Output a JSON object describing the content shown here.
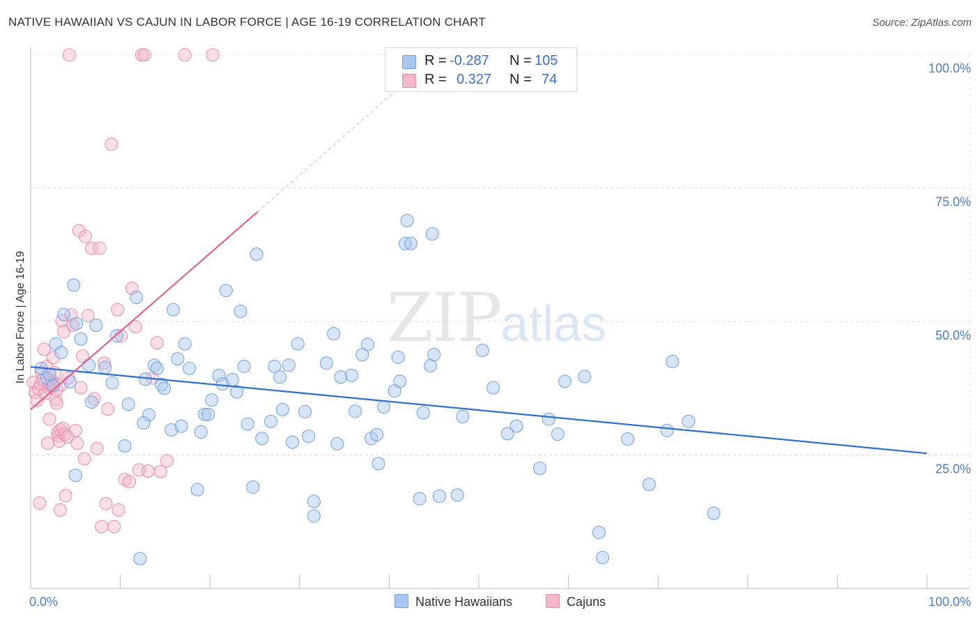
{
  "header": {
    "title": "NATIVE HAWAIIAN VS CAJUN IN LABOR FORCE | AGE 16-19 CORRELATION CHART",
    "source": "Source: ZipAtlas.com"
  },
  "watermark": {
    "zip": "ZIP",
    "atlas": "atlas"
  },
  "legend": {
    "rows": [
      {
        "r_label": "R =",
        "r_value": "-0.287",
        "n_label": "N =",
        "n_value": "105",
        "color": "#a9c6f0"
      },
      {
        "r_label": "R =",
        "r_value": " 0.327",
        "n_label": "N =",
        "n_value": "74",
        "color": "#f5b8c9"
      }
    ]
  },
  "bottom_legend": {
    "items": [
      {
        "label": "Native Hawaiians",
        "color": "#a9c6f0"
      },
      {
        "label": "Cajuns",
        "color": "#f5b8c9"
      }
    ]
  },
  "chart_data": {
    "type": "scatter",
    "title": "NATIVE HAWAIIAN VS CAJUN IN LABOR FORCE | AGE 16-19 CORRELATION CHART",
    "xlabel": "",
    "ylabel": "In Labor Force | Age 16-19",
    "xlim": [
      0,
      100
    ],
    "ylim": [
      0,
      100
    ],
    "x_tick_labels": [
      "0.0%",
      "100.0%"
    ],
    "y_tick_labels": [
      {
        "value": 100,
        "label": "100.0%"
      },
      {
        "value": 75,
        "label": "75.0%"
      },
      {
        "value": 50,
        "label": "50.0%"
      },
      {
        "value": 25,
        "label": "25.0%"
      }
    ],
    "grid": true,
    "series": [
      {
        "name": "Native Hawaiians",
        "color": "#a9c6f0",
        "stroke": "#6f9fe0",
        "trend": {
          "x0": 0,
          "y0": 41.5,
          "x1": 100,
          "y1": 25.3,
          "color": "#2c6fcf"
        },
        "points": [
          [
            1.2,
            41.2
          ],
          [
            1.8,
            39.4
          ],
          [
            2.1,
            40.1
          ],
          [
            2.5,
            38.0
          ],
          [
            2.8,
            45.8
          ],
          [
            3.4,
            44.2
          ],
          [
            3.7,
            51.3
          ],
          [
            4.4,
            38.7
          ],
          [
            4.8,
            56.8
          ],
          [
            5.1,
            49.6
          ],
          [
            5.6,
            46.7
          ],
          [
            6.5,
            41.8
          ],
          [
            6.8,
            34.9
          ],
          [
            7.3,
            49.3
          ],
          [
            8.3,
            41.4
          ],
          [
            9.1,
            38.5
          ],
          [
            9.6,
            47.3
          ],
          [
            10.5,
            26.7
          ],
          [
            10.9,
            34.5
          ],
          [
            11.8,
            54.5
          ],
          [
            12.2,
            5.6
          ],
          [
            12.8,
            39.2
          ],
          [
            13.2,
            32.5
          ],
          [
            13.8,
            41.8
          ],
          [
            14.1,
            41.2
          ],
          [
            14.6,
            38.2
          ],
          [
            14.9,
            37.5
          ],
          [
            15.7,
            29.7
          ],
          [
            15.9,
            52.2
          ],
          [
            16.4,
            43.0
          ],
          [
            16.8,
            30.4
          ],
          [
            17.2,
            45.8
          ],
          [
            17.7,
            41.2
          ],
          [
            18.6,
            18.5
          ],
          [
            19.0,
            29.3
          ],
          [
            19.4,
            32.6
          ],
          [
            19.8,
            32.6
          ],
          [
            20.2,
            35.3
          ],
          [
            21.0,
            39.9
          ],
          [
            21.4,
            38.3
          ],
          [
            21.8,
            55.8
          ],
          [
            22.5,
            39.1
          ],
          [
            23.0,
            36.8
          ],
          [
            23.4,
            51.9
          ],
          [
            23.8,
            41.6
          ],
          [
            24.2,
            30.8
          ],
          [
            24.8,
            19.0
          ],
          [
            25.2,
            62.6
          ],
          [
            25.8,
            28.1
          ],
          [
            26.8,
            31.3
          ],
          [
            27.2,
            41.6
          ],
          [
            27.8,
            39.6
          ],
          [
            28.1,
            33.5
          ],
          [
            28.8,
            41.8
          ],
          [
            29.2,
            27.4
          ],
          [
            29.8,
            45.8
          ],
          [
            30.6,
            33.1
          ],
          [
            31.0,
            28.5
          ],
          [
            31.6,
            16.3
          ],
          [
            31.6,
            13.6
          ],
          [
            33.0,
            42.2
          ],
          [
            33.8,
            47.7
          ],
          [
            34.2,
            27.1
          ],
          [
            34.6,
            39.6
          ],
          [
            35.8,
            39.9
          ],
          [
            36.2,
            33.2
          ],
          [
            37.0,
            43.8
          ],
          [
            37.6,
            45.7
          ],
          [
            38.0,
            28.1
          ],
          [
            38.6,
            28.8
          ],
          [
            39.4,
            34.0
          ],
          [
            40.6,
            37.0
          ],
          [
            41.0,
            43.3
          ],
          [
            41.2,
            38.8
          ],
          [
            41.8,
            64.6
          ],
          [
            42.0,
            68.9
          ],
          [
            42.4,
            64.6
          ],
          [
            43.4,
            16.8
          ],
          [
            43.8,
            32.9
          ],
          [
            44.6,
            41.7
          ],
          [
            44.8,
            66.4
          ],
          [
            45.0,
            43.8
          ],
          [
            45.6,
            17.3
          ],
          [
            47.6,
            17.5
          ],
          [
            48.2,
            32.2
          ],
          [
            50.4,
            44.6
          ],
          [
            51.6,
            37.6
          ],
          [
            53.2,
            29.0
          ],
          [
            54.2,
            30.4
          ],
          [
            56.8,
            22.5
          ],
          [
            57.8,
            31.7
          ],
          [
            58.8,
            28.9
          ],
          [
            59.6,
            38.8
          ],
          [
            61.8,
            39.7
          ],
          [
            63.4,
            10.5
          ],
          [
            63.8,
            5.8
          ],
          [
            66.6,
            28.0
          ],
          [
            69.0,
            19.5
          ],
          [
            71.0,
            29.6
          ],
          [
            71.6,
            42.5
          ],
          [
            73.4,
            31.3
          ],
          [
            76.2,
            14.1
          ],
          [
            12.6,
            31.0
          ],
          [
            38.8,
            23.4
          ],
          [
            5.0,
            21.2
          ]
        ]
      },
      {
        "name": "Cajuns",
        "color": "#f5b8c9",
        "stroke": "#e98aa8",
        "trend": {
          "x0": 0,
          "y0": 33.5,
          "x1": 25.3,
          "y1": 70.5,
          "color": "#e0628a"
        },
        "trend_ext": {
          "x0": 25.3,
          "y0": 70.5,
          "x1": 43.0,
          "y1": 96.5
        },
        "points": [
          [
            0.3,
            38.6
          ],
          [
            0.5,
            36.7
          ],
          [
            0.7,
            35.2
          ],
          [
            0.9,
            37.4
          ],
          [
            1.1,
            38.3
          ],
          [
            1.2,
            40.5
          ],
          [
            1.4,
            39.1
          ],
          [
            1.5,
            44.8
          ],
          [
            1.6,
            36.5
          ],
          [
            1.8,
            41.6
          ],
          [
            2.0,
            37.6
          ],
          [
            2.1,
            31.7
          ],
          [
            2.2,
            38.1
          ],
          [
            2.3,
            39.0
          ],
          [
            2.4,
            37.8
          ],
          [
            2.5,
            43.2
          ],
          [
            2.6,
            38.4
          ],
          [
            2.7,
            40.4
          ],
          [
            2.8,
            35.4
          ],
          [
            2.9,
            37.2
          ],
          [
            3.0,
            29.2
          ],
          [
            3.1,
            28.6
          ],
          [
            3.2,
            27.6
          ],
          [
            3.3,
            29.7
          ],
          [
            3.4,
            38.1
          ],
          [
            3.5,
            50.1
          ],
          [
            3.6,
            30.0
          ],
          [
            3.7,
            48.1
          ],
          [
            3.8,
            28.9
          ],
          [
            3.9,
            17.4
          ],
          [
            4.2,
            39.4
          ],
          [
            4.5,
            51.2
          ],
          [
            4.7,
            49.3
          ],
          [
            5.0,
            29.6
          ],
          [
            5.2,
            27.2
          ],
          [
            5.4,
            67.0
          ],
          [
            5.6,
            37.6
          ],
          [
            5.8,
            43.5
          ],
          [
            6.1,
            65.9
          ],
          [
            6.4,
            51.1
          ],
          [
            6.8,
            63.7
          ],
          [
            7.1,
            35.5
          ],
          [
            7.4,
            26.2
          ],
          [
            7.7,
            63.7
          ],
          [
            7.9,
            11.6
          ],
          [
            8.2,
            42.2
          ],
          [
            8.4,
            15.9
          ],
          [
            8.6,
            33.6
          ],
          [
            9.0,
            83.2
          ],
          [
            9.3,
            11.6
          ],
          [
            9.7,
            52.2
          ],
          [
            10.1,
            47.3
          ],
          [
            10.5,
            20.4
          ],
          [
            11.0,
            20.0
          ],
          [
            11.3,
            56.2
          ],
          [
            11.7,
            49.0
          ],
          [
            12.1,
            22.2
          ],
          [
            12.4,
            99.9
          ],
          [
            12.7,
            99.9
          ],
          [
            13.1,
            22.0
          ],
          [
            13.6,
            39.4
          ],
          [
            14.1,
            46.0
          ],
          [
            14.5,
            21.9
          ],
          [
            15.2,
            23.9
          ],
          [
            17.2,
            99.9
          ],
          [
            20.3,
            99.9
          ],
          [
            4.3,
            99.9
          ],
          [
            1.9,
            27.2
          ],
          [
            2.9,
            34.7
          ],
          [
            3.3,
            14.7
          ],
          [
            6.0,
            24.3
          ],
          [
            9.8,
            14.7
          ],
          [
            1.0,
            16.0
          ],
          [
            4.1,
            28.4
          ]
        ]
      }
    ]
  }
}
